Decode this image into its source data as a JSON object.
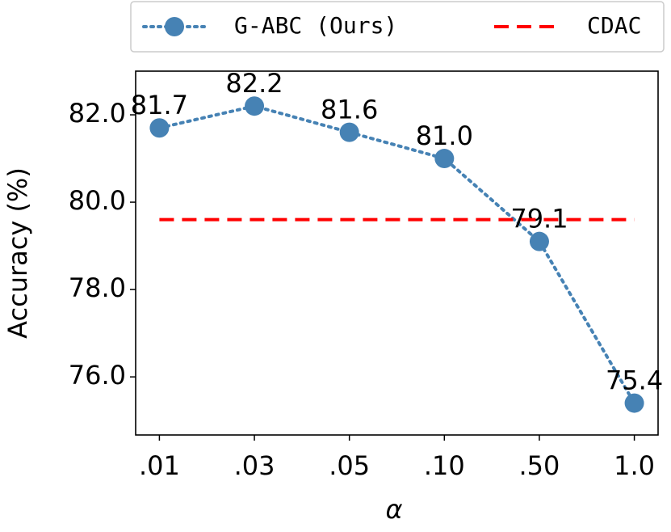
{
  "chart_data": {
    "type": "line",
    "xlabel": "α",
    "ylabel": "Accuracy (%)",
    "categories": [
      ".01",
      ".03",
      ".05",
      ".10",
      ".50",
      "1.0"
    ],
    "series": [
      {
        "name": "G-ABC (Ours)",
        "color": "#4682b4",
        "dash": "dotted",
        "marker": true,
        "values": [
          81.7,
          82.2,
          81.6,
          81.0,
          79.1,
          75.4
        ],
        "value_labels": [
          "81.7",
          "82.2",
          "81.6",
          "81.0",
          "79.1",
          "75.4"
        ]
      },
      {
        "name": "CDAC",
        "color": "#ff0000",
        "dash": "dashed",
        "marker": false,
        "values": [
          79.6,
          79.6,
          79.6,
          79.6,
          79.6,
          79.6
        ]
      }
    ],
    "ylim": [
      74.67,
      83.0
    ],
    "yticks": [
      {
        "value": 76,
        "label": "76.0"
      },
      {
        "value": 78,
        "label": "78.0"
      },
      {
        "value": 80,
        "label": "80.0"
      },
      {
        "value": 82,
        "label": "82.0"
      }
    ],
    "legend": "top"
  }
}
